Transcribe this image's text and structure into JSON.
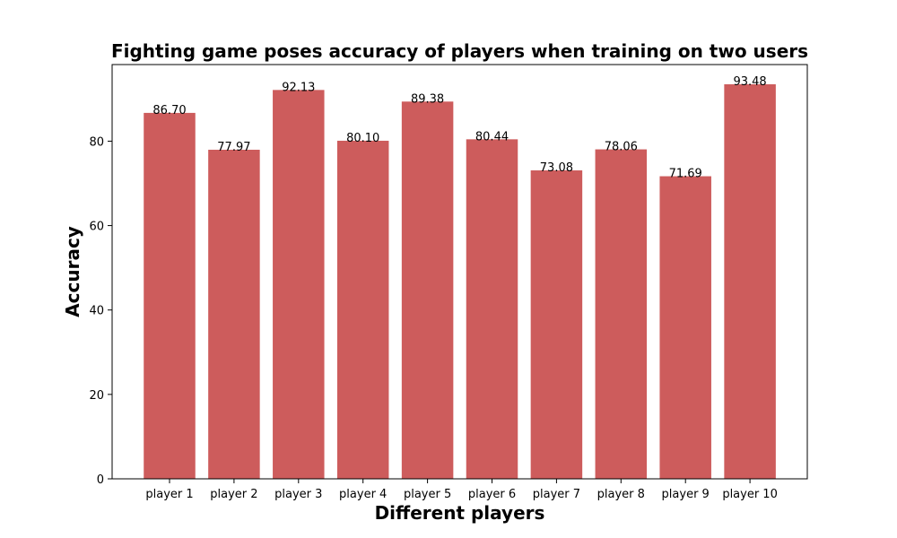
{
  "chart_data": {
    "type": "bar",
    "title": "Fighting game poses accuracy of players when training on two users",
    "xlabel": "Different players",
    "ylabel": "Accuracy",
    "categories": [
      "player 1",
      "player 2",
      "player 3",
      "player 4",
      "player 5",
      "player 6",
      "player 7",
      "player 8",
      "player 9",
      "player 10"
    ],
    "values": [
      86.7,
      77.97,
      92.13,
      80.1,
      89.38,
      80.44,
      73.08,
      78.06,
      71.69,
      93.48
    ],
    "value_labels": [
      "86.70",
      "77.97",
      "92.13",
      "80.10",
      "89.38",
      "80.44",
      "73.08",
      "78.06",
      "71.69",
      "93.48"
    ],
    "ylim": [
      0,
      98.15
    ],
    "yticks": [
      0,
      20,
      40,
      60,
      80
    ],
    "grid": false,
    "bar_color": "#cd5c5c"
  }
}
